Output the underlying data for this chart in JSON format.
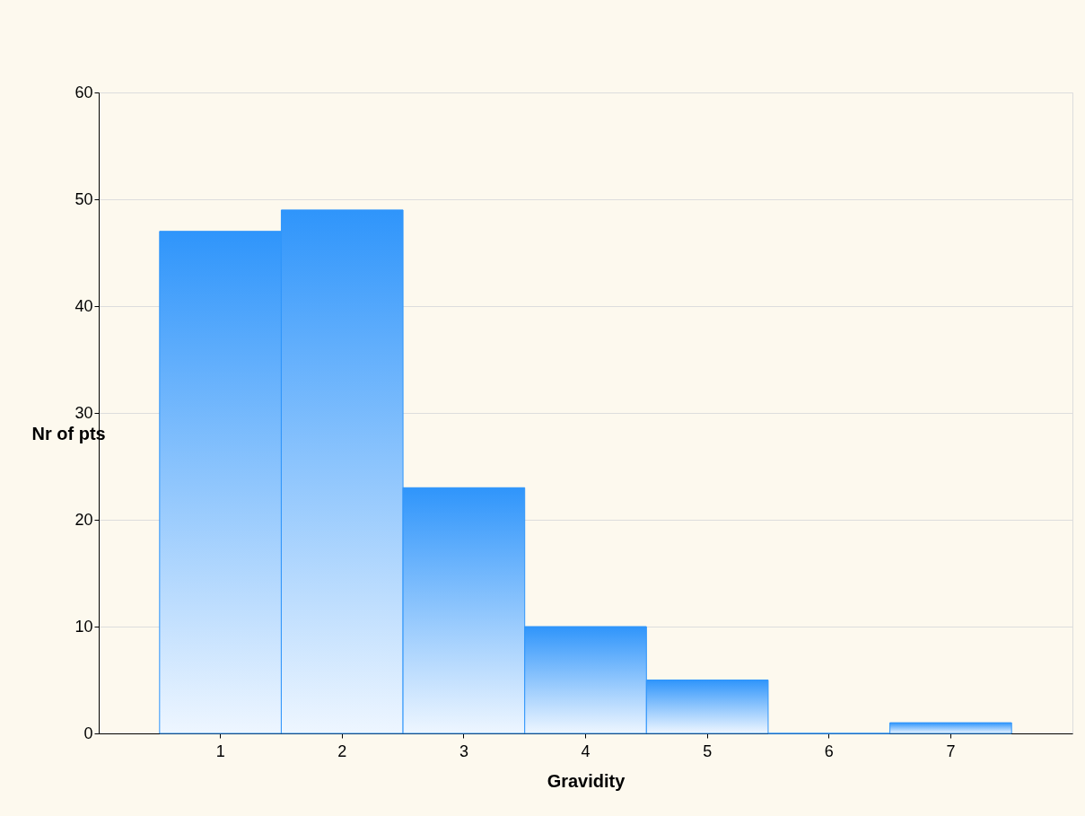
{
  "chart_data": {
    "type": "bar",
    "xlabel": "Gravidity",
    "ylabel": "Nr of pts",
    "categories": [
      "1",
      "2",
      "3",
      "4",
      "5",
      "6",
      "7"
    ],
    "values": [
      47,
      49,
      23,
      10,
      5,
      0,
      1
    ],
    "color": "#2f95fb",
    "ylim": [
      0,
      60
    ],
    "yticks": [
      0,
      10,
      20,
      30,
      40,
      50,
      60
    ],
    "grid": "y"
  }
}
